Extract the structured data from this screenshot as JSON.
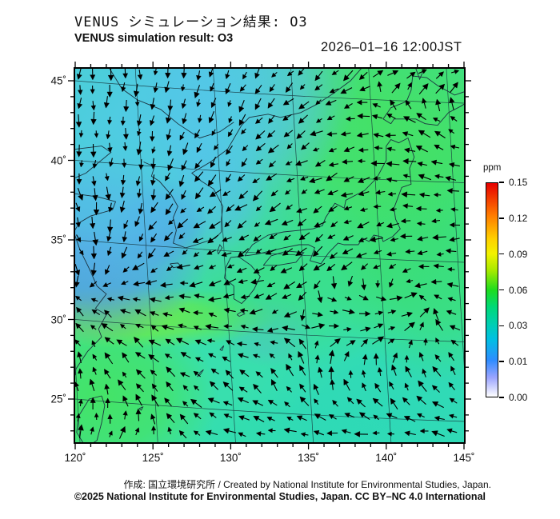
{
  "titles": {
    "jp": "VENUS シミュレーション結果: O3",
    "en": "VENUS simulation result: O3",
    "datetime": "2026–01–16 12:00JST"
  },
  "credits": {
    "line1": "作成: 国立環境研究所 / Created by National Institute for Environmental Studies, Japan.",
    "line2": "©2025 National Institute for Environmental Studies, Japan. CC BY–NC 4.0 International"
  },
  "chart_data": {
    "type": "heatmap",
    "variable": "O3 surface concentration",
    "unit": "ppm",
    "title": "VENUS simulation result: O3",
    "timestamp": "2026-01-16 12:00 JST",
    "projection": "lambert-like, graticule tilted ~3.5°",
    "x_axis": {
      "label_suffix": "˚",
      "ticks": [
        "120˚",
        "125˚",
        "130˚",
        "135˚",
        "140˚",
        "145˚"
      ],
      "range_lon": [
        120,
        145
      ],
      "minor_tick_deg": 1
    },
    "y_axis": {
      "ticks": [
        "45˚",
        "40˚",
        "35˚",
        "30˚",
        "25˚"
      ],
      "range_lat": [
        22.3,
        45.8
      ],
      "minor_tick_deg": 1
    },
    "colorbar": {
      "unit": "ppm",
      "tick_labels": [
        "0.15",
        "0.12",
        "0.09",
        "0.06",
        "0.03",
        "0.01",
        "0.00"
      ],
      "tick_values": [
        0.15,
        0.12,
        0.09,
        0.06,
        0.03,
        0.01,
        0.0
      ],
      "orientation": "vertical, max on top, evenly spaced nonlinear ticks",
      "gradient_top_to_bottom": [
        "#e60000 0%",
        "#ff7b00 15%",
        "#ffd000 26%",
        "#f2f200 33%",
        "#a6ea00 41%",
        "#1edc1e 50%",
        "#00d977 58%",
        "#00cfb2 66%",
        "#00c0e2 73%",
        "#2e8cff 83%",
        "#9aa4ff 91%",
        "#ffffff 100%"
      ]
    },
    "o3_field_regions": [
      {
        "desc": "base field (sea, most of domain)",
        "ppm": 0.045,
        "color": "#38dfae",
        "x": 0.5,
        "y": 0.5,
        "rx": 1.2,
        "ry": 1.2,
        "alpha": 1
      },
      {
        "desc": "cyan low band NW (Bohai / NE China)",
        "ppm": 0.035,
        "color": "#52c9e8",
        "x": 0.13,
        "y": 0.16,
        "rx": 0.55,
        "ry": 0.5,
        "alpha": 0.9
      },
      {
        "desc": "cyan-blue band top centre",
        "ppm": 0.03,
        "color": "#5cc0ee",
        "x": 0.4,
        "y": 0.05,
        "rx": 0.33,
        "ry": 0.3,
        "alpha": 0.7
      },
      {
        "desc": "blue low patch Yellow Sea",
        "ppm": 0.018,
        "color": "#5a8ce8",
        "x": 0.05,
        "y": 0.47,
        "rx": 0.3,
        "ry": 0.27,
        "alpha": 0.9
      },
      {
        "desc": "deep blue spot west of Korea",
        "ppm": 0.012,
        "color": "#4670e0",
        "x": 0.21,
        "y": 0.41,
        "rx": 0.13,
        "ry": 0.12,
        "alpha": 0.8
      },
      {
        "desc": "blue streak north Yellow Sea",
        "ppm": 0.025,
        "color": "#64aaf0",
        "x": 0.3,
        "y": 0.12,
        "rx": 0.1,
        "ry": 0.24,
        "alpha": 0.55
      },
      {
        "desc": "cyan patch Sea of Japan coast",
        "ppm": 0.03,
        "color": "#58b6ec",
        "x": 0.36,
        "y": 0.33,
        "rx": 0.14,
        "ry": 0.16,
        "alpha": 0.6
      },
      {
        "desc": "green area Hokkaido / NE Japan",
        "ppm": 0.055,
        "color": "#46e15f",
        "x": 0.78,
        "y": 0.13,
        "rx": 0.45,
        "ry": 0.34,
        "alpha": 0.9
      },
      {
        "desc": "green area Pacific east of Honshu",
        "ppm": 0.055,
        "color": "#3cde64",
        "x": 0.93,
        "y": 0.44,
        "rx": 0.3,
        "ry": 0.4,
        "alpha": 0.75
      },
      {
        "desc": "green area central Japan",
        "ppm": 0.05,
        "color": "#3cdf6e",
        "x": 0.55,
        "y": 0.47,
        "rx": 0.4,
        "ry": 0.34,
        "alpha": 0.6
      },
      {
        "desc": "bright green band ~30N China coast",
        "ppm": 0.065,
        "color": "#6eeb46",
        "x": 0.16,
        "y": 0.665,
        "rx": 0.36,
        "ry": 0.085,
        "alpha": 0.9
      },
      {
        "desc": "green SE China / Taiwan strait",
        "ppm": 0.055,
        "color": "#46e45a",
        "x": 0.07,
        "y": 0.88,
        "rx": 0.3,
        "ry": 0.24,
        "alpha": 0.85
      },
      {
        "desc": "cyan patch south of Shikoku",
        "ppm": 0.04,
        "color": "#5ab4e6",
        "x": 0.5,
        "y": 0.7,
        "rx": 0.13,
        "ry": 0.1,
        "alpha": 0.45
      },
      {
        "desc": "turquoise SE Pacific corner",
        "ppm": 0.04,
        "color": "#2dd8b9",
        "x": 0.85,
        "y": 0.92,
        "rx": 0.42,
        "ry": 0.26,
        "alpha": 0.85
      },
      {
        "desc": "turquoise south rim",
        "ppm": 0.042,
        "color": "#2fdcb0",
        "x": 0.58,
        "y": 0.99,
        "rx": 0.32,
        "ry": 0.14,
        "alpha": 0.8
      }
    ],
    "wind": {
      "glyph": "black arrows on ~19 px regular grid",
      "grid_cols": 26,
      "grid_rows": 25,
      "direction_grid_deg_screen": [
        [
          95,
          95,
          105,
          125,
          140,
          330,
          335
        ],
        [
          90,
          95,
          115,
          135,
          165,
          195,
          205
        ],
        [
          80,
          100,
          135,
          145,
          155,
          180,
          195
        ],
        [
          60,
          130,
          155,
          150,
          140,
          160,
          180
        ],
        [
          230,
          210,
          195,
          165,
          5,
          350,
          200
        ],
        [
          260,
          225,
          210,
          240,
          260,
          250,
          230
        ],
        [
          285,
          295,
          200,
          185,
          180,
          180,
          185
        ]
      ],
      "note": "0=east,90=south(screen); field: northerlies NW quadrant, NE-erlies over N Japan turning SW, easterlies along southern rim, northward flow near Taiwan"
    },
    "basemap": "coastlines of E China, Korea, Japan, Taiwan, Sakhalin; 5° graticule"
  }
}
